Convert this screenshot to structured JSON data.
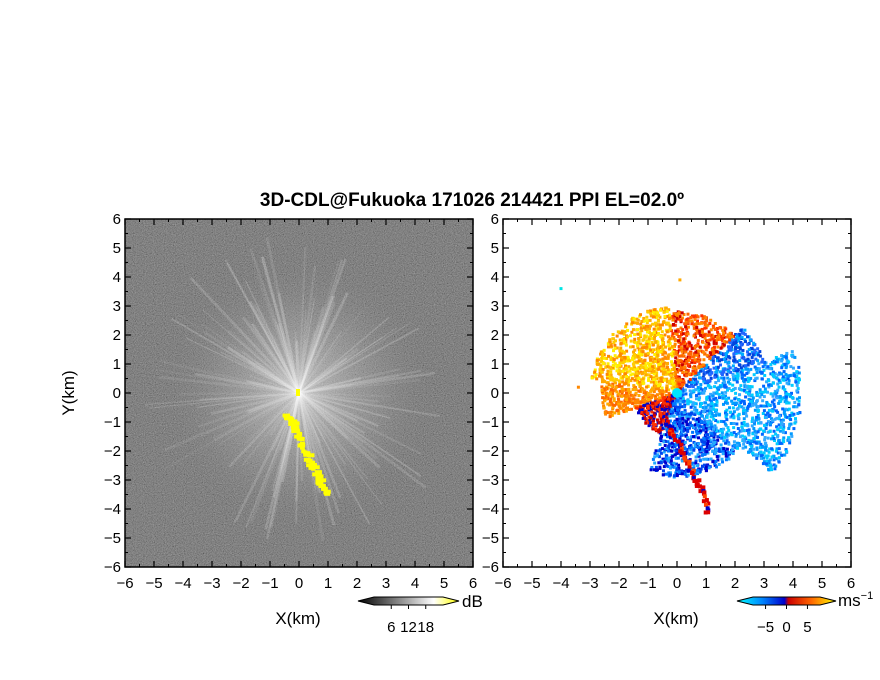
{
  "figure": {
    "title": "3D-CDL@Fukuoka 171026 214421 PPI EL=02.0º"
  },
  "chart_data": [
    {
      "type": "heatmap",
      "name": "reflectivity-ppi",
      "title": "",
      "xlabel": "X(km)",
      "ylabel": "Y(km)",
      "xlim": [
        -6,
        6
      ],
      "ylim": [
        -6,
        6
      ],
      "xticks": [
        -6,
        -5,
        -4,
        -3,
        -2,
        -1,
        0,
        1,
        2,
        3,
        4,
        5,
        6
      ],
      "yticks": [
        -6,
        -5,
        -4,
        -3,
        -2,
        -1,
        0,
        1,
        2,
        3,
        4,
        5,
        6
      ],
      "grid": false,
      "colorbar": {
        "unit": "dB",
        "ticks": [
          6,
          12,
          18
        ],
        "range": [
          0,
          24
        ],
        "colors": [
          "#000000",
          "#ffffff",
          "#ffff00"
        ]
      },
      "highlight_track": [
        [
          -0.4,
          -0.8
        ],
        [
          -0.2,
          -1.1
        ],
        [
          0.1,
          -1.8
        ],
        [
          0.4,
          -2.4
        ],
        [
          0.7,
          -3.0
        ],
        [
          1.0,
          -3.5
        ]
      ]
    },
    {
      "type": "heatmap",
      "name": "velocity-ppi",
      "title": "",
      "xlabel": "X(km)",
      "ylabel": "",
      "xlim": [
        -6,
        6
      ],
      "ylim": [
        -6,
        6
      ],
      "xticks": [
        -6,
        -5,
        -4,
        -3,
        -2,
        -1,
        0,
        1,
        2,
        3,
        4,
        5,
        6
      ],
      "yticks": [
        -6,
        -5,
        -4,
        -3,
        -2,
        -1,
        0,
        1,
        2,
        3,
        4,
        5,
        6
      ],
      "grid": false,
      "colorbar": {
        "unit": "ms",
        "unit_exponent": "−1",
        "ticks": [
          -5,
          0,
          5
        ],
        "range": [
          -8,
          8
        ],
        "colors": [
          "#00ffff",
          "#0088ff",
          "#0000cc",
          "#cc0000",
          "#ff6600",
          "#ffff00"
        ]
      },
      "highlight_track": [
        [
          -0.4,
          -1.0
        ],
        [
          -0.1,
          -1.5
        ],
        [
          0.3,
          -2.2
        ],
        [
          0.6,
          -2.9
        ],
        [
          0.9,
          -3.4
        ],
        [
          1.1,
          -4.2
        ]
      ]
    }
  ]
}
